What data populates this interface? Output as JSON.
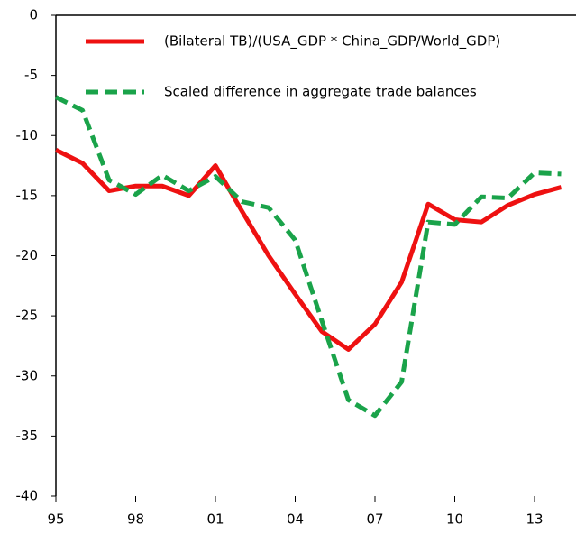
{
  "chart_data": {
    "type": "line",
    "categories": [
      "95",
      null,
      null,
      "98",
      null,
      null,
      "01",
      null,
      null,
      "04",
      null,
      null,
      "07",
      null,
      null,
      "10",
      null,
      null,
      "13",
      null
    ],
    "series": [
      {
        "name": "(Bilateral TB)/(USA_GDP * China_GDP/World_GDP)",
        "color": "#ee1111",
        "dash": false,
        "values": [
          -11.2,
          -12.3,
          -14.6,
          -14.2,
          -14.2,
          -15.0,
          -12.5,
          -16.3,
          -20.0,
          -23.2,
          -26.3,
          -27.8,
          -25.7,
          -22.2,
          -15.7,
          -17.0,
          -17.2,
          -15.8,
          -14.9,
          -14.3
        ]
      },
      {
        "name": "Scaled difference in aggregate trade balances",
        "color": "#1aa34a",
        "dash": true,
        "values": [
          -6.8,
          -7.9,
          -13.7,
          -14.9,
          -13.3,
          -14.6,
          -13.4,
          -15.5,
          -16.0,
          -18.7,
          -25.4,
          -32.0,
          -33.3,
          -30.5,
          -17.2,
          -17.4,
          -15.1,
          -15.2,
          -13.1,
          -13.2
        ]
      }
    ],
    "ylim": [
      -40,
      0
    ],
    "yticks": [
      0,
      -5,
      -10,
      -15,
      -20,
      -25,
      -30,
      -35,
      -40
    ],
    "legend": "top-right"
  }
}
